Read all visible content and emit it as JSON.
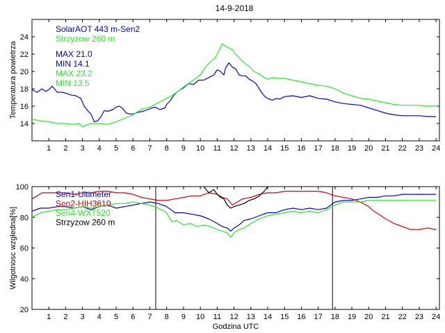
{
  "figure_title": "14-9-2018",
  "chart_data": [
    {
      "type": "line",
      "title": "14-9-2018",
      "xlabel": "",
      "ylabel": "Temperatura powietrza",
      "xlim": [
        0,
        24.2
      ],
      "ylim": [
        12,
        26
      ],
      "xticks": [
        "1",
        "2",
        "3",
        "4",
        "5",
        "6",
        "7",
        "8",
        "9",
        "10",
        "11",
        "12",
        "13",
        "14",
        "15",
        "16",
        "17",
        "18",
        "19",
        "20",
        "21",
        "22",
        "23",
        "24"
      ],
      "yticks": [
        "14",
        "16",
        "18",
        "20",
        "22",
        "24"
      ],
      "legend": [
        "SolarAOT 443 m-Sen2",
        "Strzyzow 260 m"
      ],
      "stats": [
        "MAX 21.0",
        "MIN 14.1",
        "MAX 23.2",
        "MIN 13.5"
      ],
      "series": [
        {
          "name": "SolarAOT 443 m-Sen2",
          "color": "#0000dd",
          "x": [
            0,
            0.3,
            0.6,
            0.8,
            1.0,
            1.2,
            1.5,
            1.8,
            2.0,
            2.3,
            2.6,
            2.9,
            3.1,
            3.3,
            3.5,
            3.7,
            3.9,
            4.1,
            4.3,
            4.5,
            4.8,
            5.0,
            5.2,
            5.4,
            5.6,
            5.8,
            6.0,
            6.3,
            6.6,
            7.0,
            7.3,
            7.6,
            7.9,
            8.0,
            8.2,
            8.4,
            8.6,
            8.8,
            9.0,
            9.3,
            9.6,
            9.9,
            10.2,
            10.5,
            10.8,
            11.0,
            11.2,
            11.4,
            11.5,
            11.7,
            11.9,
            12.1,
            12.3,
            12.5,
            12.7,
            12.9,
            13.1,
            13.3,
            13.5,
            13.7,
            13.9,
            14.1,
            14.3,
            14.5,
            14.7,
            15.0,
            15.5,
            16.0,
            16.5,
            17.0,
            17.5,
            18.0,
            18.5,
            19.0,
            19.5,
            20.0,
            20.5,
            21.0,
            21.5,
            22.0,
            22.5,
            23.0,
            23.5,
            24.0
          ],
          "values": [
            17.9,
            17.6,
            18.0,
            17.7,
            17.9,
            18.3,
            17.6,
            17.6,
            17.5,
            17.3,
            17.2,
            16.9,
            16.0,
            15.5,
            15.1,
            14.2,
            14.3,
            14.8,
            15.5,
            15.4,
            15.6,
            15.9,
            16.0,
            15.7,
            15.2,
            15.1,
            15.1,
            15.3,
            15.4,
            15.7,
            15.9,
            15.6,
            15.8,
            16.2,
            16.6,
            17.2,
            17.6,
            17.9,
            18.1,
            18.6,
            18.5,
            19.0,
            19.0,
            19.3,
            19.6,
            20.2,
            20.0,
            19.6,
            20.4,
            21.0,
            20.5,
            20.3,
            19.6,
            19.5,
            19.5,
            19.1,
            18.9,
            18.6,
            18.0,
            17.4,
            17.0,
            16.8,
            16.7,
            16.9,
            16.8,
            17.1,
            17.2,
            17.0,
            17.2,
            16.9,
            16.8,
            16.5,
            16.3,
            16.2,
            16.1,
            15.8,
            15.5,
            15.2,
            15.0,
            14.9,
            14.9,
            14.9,
            14.8,
            14.8
          ]
        },
        {
          "name": "Strzyzow 260 m",
          "color": "#22ee22",
          "x": [
            0,
            0.5,
            1.0,
            1.5,
            2.0,
            2.5,
            2.8,
            3.0,
            3.2,
            3.5,
            4.0,
            4.5,
            5.0,
            5.5,
            6.0,
            6.3,
            6.6,
            7.0,
            7.5,
            8.0,
            8.3,
            8.6,
            9.0,
            9.5,
            10.0,
            10.3,
            10.6,
            10.9,
            11.1,
            11.3,
            11.5,
            11.7,
            11.9,
            12.1,
            12.3,
            12.6,
            12.9,
            13.2,
            13.5,
            13.8,
            14.0,
            14.3,
            14.6,
            15.0,
            15.5,
            16.0,
            16.5,
            17.0,
            17.5,
            18.0,
            18.5,
            19.0,
            19.5,
            20.0,
            20.5,
            21.0,
            21.5,
            22.0,
            22.5,
            23.0,
            23.5,
            24.0
          ],
          "values": [
            14.5,
            14.3,
            14.2,
            14.0,
            14.0,
            13.9,
            14.0,
            13.6,
            13.8,
            14.0,
            14.0,
            13.9,
            14.2,
            14.6,
            15.0,
            15.4,
            15.7,
            15.9,
            16.4,
            16.9,
            17.2,
            17.6,
            18.2,
            18.9,
            19.6,
            20.5,
            21.1,
            21.6,
            22.4,
            23.2,
            22.9,
            22.7,
            22.5,
            22.0,
            21.6,
            21.0,
            20.6,
            20.0,
            19.7,
            19.3,
            19.1,
            19.3,
            19.2,
            19.2,
            19.0,
            18.8,
            18.6,
            18.4,
            18.3,
            18.0,
            17.5,
            17.2,
            16.9,
            16.8,
            16.6,
            16.4,
            16.2,
            16.1,
            16.1,
            16.1,
            16.0,
            16.0
          ]
        }
      ]
    },
    {
      "type": "line",
      "title": "",
      "xlabel": "Godzina UTC",
      "ylabel": "Wilgotnosc wzgledna[%]",
      "xlim": [
        0,
        24.2
      ],
      "ylim": [
        20,
        100
      ],
      "xticks": [
        "1",
        "2",
        "3",
        "4",
        "5",
        "6",
        "7",
        "8",
        "9",
        "10",
        "11",
        "12",
        "13",
        "14",
        "15",
        "16",
        "17",
        "18",
        "19",
        "20",
        "21",
        "22",
        "23",
        "24"
      ],
      "yticks": [
        "20",
        "40",
        "60",
        "80",
        "100"
      ],
      "legend": [
        "Sen1-Ultimeter",
        "Sen2-HIH3610",
        "Sen4-WXT520",
        "Strzyzow 260 m"
      ],
      "vlines": [
        7.35,
        17.85
      ],
      "series": [
        {
          "name": "Sen1-Ultimeter",
          "color": "#0000dd",
          "x": [
            0,
            0.5,
            1.0,
            1.5,
            2.0,
            2.5,
            3.0,
            3.5,
            4.0,
            4.5,
            5.0,
            5.5,
            6.0,
            6.5,
            7.0,
            7.5,
            8.0,
            8.5,
            9.0,
            9.5,
            10.0,
            10.5,
            11.0,
            11.3,
            11.6,
            11.8,
            12.0,
            12.3,
            12.6,
            13.0,
            13.5,
            14.0,
            14.5,
            15.0,
            15.5,
            16.0,
            16.5,
            17.0,
            17.5,
            18.0,
            18.5,
            19.0,
            19.5,
            20.0,
            20.5,
            21.0,
            21.5,
            22.0,
            22.5,
            23.0,
            23.5,
            24.0
          ],
          "values": [
            84,
            86,
            86,
            87,
            87,
            86,
            87,
            85,
            87,
            88,
            86,
            87,
            88,
            89,
            90,
            89,
            87,
            83,
            83,
            82,
            81,
            79,
            76,
            74,
            73,
            71,
            73,
            75,
            78,
            79,
            81,
            83,
            83,
            85,
            86,
            85,
            86,
            85,
            86,
            90,
            91,
            91,
            92,
            93,
            93,
            94,
            94,
            95,
            95,
            95,
            95,
            95
          ]
        },
        {
          "name": "Sen2-HIH3610",
          "color": "#dd0000",
          "x": [
            0,
            0.3,
            0.6,
            1.0,
            1.5,
            2.0,
            2.5,
            3.0,
            3.5,
            4.0,
            4.5,
            5.0,
            5.5,
            6.0,
            6.5,
            7.0,
            7.5,
            8.0,
            8.5,
            9.0,
            9.5,
            10.0,
            10.5,
            11.0,
            11.3,
            11.6,
            11.9,
            12.2,
            12.5,
            13.0,
            13.5,
            14.0,
            14.5,
            15.0,
            15.5,
            16.0,
            16.5,
            17.0,
            17.5,
            18.0,
            18.5,
            19.0,
            19.5,
            20.0,
            20.3,
            20.6,
            21.0,
            21.5,
            22.0,
            22.5,
            23.0,
            23.5,
            24.0
          ],
          "values": [
            92,
            94,
            96,
            96,
            96,
            96,
            95,
            96,
            96,
            97,
            97,
            96,
            96,
            95,
            93,
            92,
            91,
            91,
            92,
            93,
            94,
            94,
            96,
            95,
            93,
            92,
            88,
            90,
            92,
            93,
            95,
            96,
            96,
            97,
            97,
            97,
            97,
            97,
            96,
            94,
            93,
            92,
            90,
            87,
            84,
            82,
            79,
            76,
            74,
            72,
            72,
            73,
            72
          ]
        },
        {
          "name": "Sen4-WXT520",
          "color": "#22ee22",
          "x": [
            0,
            0.5,
            1.0,
            1.5,
            2.0,
            2.5,
            3.0,
            3.5,
            4.0,
            4.5,
            5.0,
            5.5,
            6.0,
            6.5,
            7.0,
            7.5,
            8.0,
            8.3,
            8.6,
            9.0,
            9.4,
            9.8,
            10.2,
            10.6,
            11.0,
            11.3,
            11.6,
            11.8,
            12.0,
            12.3,
            12.6,
            13.0,
            13.5,
            14.0,
            14.5,
            15.0,
            15.5,
            16.0,
            16.5,
            17.0,
            17.5,
            18.0,
            18.5,
            19.0,
            19.5,
            20.0,
            21.0,
            22.0,
            23.0,
            24.0
          ],
          "values": [
            80,
            83,
            84,
            85,
            85,
            86,
            87,
            86,
            87,
            88,
            89,
            89,
            90,
            89,
            88,
            86,
            83,
            77,
            78,
            75,
            76,
            74,
            75,
            74,
            72,
            71,
            70,
            67,
            70,
            72,
            73,
            76,
            79,
            81,
            82,
            83,
            84,
            83,
            84,
            83,
            85,
            88,
            90,
            90,
            90,
            91,
            91,
            91,
            91,
            91
          ]
        },
        {
          "name": "Strzyzow 260 m",
          "color": "#000000",
          "x": [
            10.2,
            10.5,
            10.8,
            11.0,
            11.2,
            11.4,
            11.6,
            11.8,
            12.0,
            12.3,
            12.6,
            12.9,
            13.2,
            13.5,
            13.8,
            14.0
          ],
          "values": [
            100,
            96,
            98,
            95,
            93,
            92,
            88,
            86,
            87,
            88,
            89,
            91,
            92,
            94,
            97,
            100
          ]
        }
      ]
    }
  ]
}
